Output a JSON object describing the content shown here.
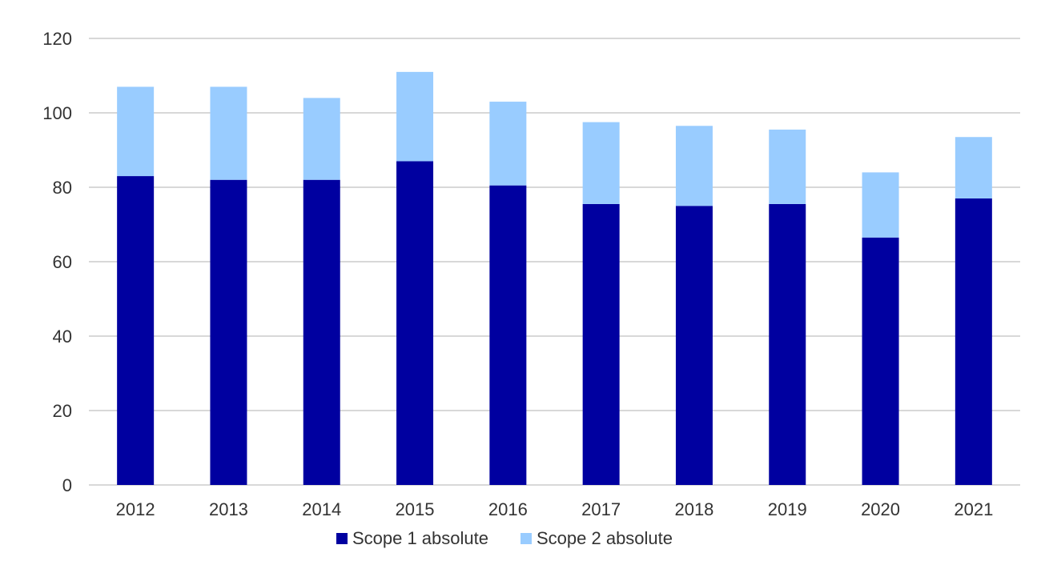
{
  "chart_data": {
    "type": "bar",
    "stacked": true,
    "categories": [
      "2012",
      "2013",
      "2014",
      "2015",
      "2016",
      "2017",
      "2018",
      "2019",
      "2020",
      "2021"
    ],
    "series": [
      {
        "name": "Scope 1 absolute",
        "color": "#0000A0",
        "values": [
          83,
          82,
          82,
          87,
          80.5,
          75.5,
          75,
          75.5,
          66.5,
          77
        ]
      },
      {
        "name": "Scope 2 absolute",
        "color": "#99CCFF",
        "values": [
          24,
          25,
          22,
          24,
          22.5,
          22,
          21.5,
          20,
          17.5,
          16.5
        ]
      }
    ],
    "title": "",
    "xlabel": "",
    "ylabel": "",
    "ylim": [
      0,
      120
    ],
    "yticks": [
      "0",
      "20",
      "40",
      "60",
      "80",
      "100",
      "120"
    ],
    "grid": true,
    "legend_position": "bottom",
    "gridline_color": "#CCCCCC"
  }
}
